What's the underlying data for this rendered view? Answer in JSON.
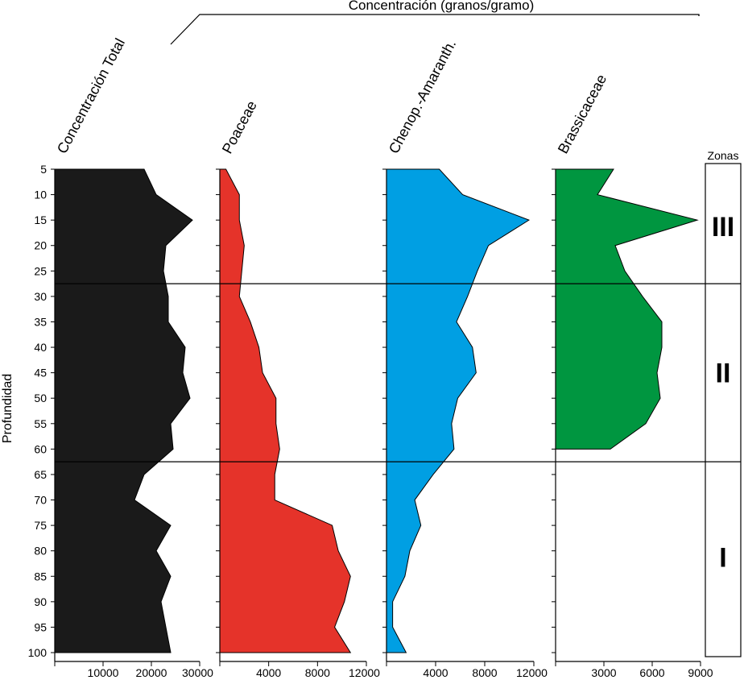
{
  "chart_data": {
    "type": "area",
    "title": "Concentración (granos/gramo)",
    "ylabel": "Profundidad",
    "zones_label": "Zonas",
    "depth": {
      "ticks": [
        5,
        10,
        15,
        20,
        25,
        30,
        35,
        40,
        45,
        50,
        55,
        60,
        65,
        70,
        75,
        80,
        85,
        90,
        95,
        100
      ],
      "ylim": [
        5,
        100
      ]
    },
    "panels": [
      {
        "name": "Concentración Total",
        "color": "#1a1a1a",
        "xlim": [
          0,
          30000
        ],
        "xticks": [
          10000,
          20000,
          30000
        ],
        "points": [
          [
            5,
            18500
          ],
          [
            10,
            21000
          ],
          [
            15,
            28500
          ],
          [
            20,
            23000
          ],
          [
            25,
            22500
          ],
          [
            30,
            23500
          ],
          [
            35,
            23500
          ],
          [
            40,
            27000
          ],
          [
            45,
            26500
          ],
          [
            50,
            28000
          ],
          [
            55,
            24000
          ],
          [
            60,
            24500
          ],
          [
            65,
            18500
          ],
          [
            70,
            16500
          ],
          [
            75,
            24000
          ],
          [
            80,
            21000
          ],
          [
            85,
            24000
          ],
          [
            90,
            22000
          ],
          [
            95,
            23000
          ],
          [
            100,
            24000
          ]
        ]
      },
      {
        "name": "Poaceae",
        "color": "#e5332a",
        "xlim": [
          0,
          12000
        ],
        "xticks": [
          4000,
          8000,
          12000
        ],
        "points": [
          [
            5,
            500
          ],
          [
            10,
            1600
          ],
          [
            15,
            1600
          ],
          [
            20,
            2000
          ],
          [
            25,
            1800
          ],
          [
            30,
            1600
          ],
          [
            35,
            2500
          ],
          [
            40,
            3200
          ],
          [
            45,
            3500
          ],
          [
            50,
            4600
          ],
          [
            55,
            4600
          ],
          [
            60,
            4900
          ],
          [
            65,
            4500
          ],
          [
            70,
            4500
          ],
          [
            75,
            9200
          ],
          [
            80,
            9700
          ],
          [
            85,
            10700
          ],
          [
            90,
            10200
          ],
          [
            95,
            9400
          ],
          [
            100,
            10700
          ]
        ]
      },
      {
        "name": "Chenop.-Amaranth.",
        "color": "#009fe3",
        "xlim": [
          0,
          12000
        ],
        "xticks": [
          4000,
          8000,
          12000
        ],
        "points": [
          [
            5,
            4300
          ],
          [
            10,
            6200
          ],
          [
            15,
            11600
          ],
          [
            20,
            8300
          ],
          [
            25,
            7400
          ],
          [
            30,
            6600
          ],
          [
            35,
            5700
          ],
          [
            40,
            7000
          ],
          [
            45,
            7300
          ],
          [
            50,
            5800
          ],
          [
            55,
            5300
          ],
          [
            60,
            5500
          ],
          [
            65,
            3800
          ],
          [
            70,
            2300
          ],
          [
            75,
            2800
          ],
          [
            80,
            1900
          ],
          [
            85,
            1500
          ],
          [
            90,
            500
          ],
          [
            95,
            500
          ],
          [
            100,
            1600
          ]
        ]
      },
      {
        "name": "Brassicaceae",
        "color": "#009640",
        "xlim": [
          0,
          9000
        ],
        "xticks": [
          3000,
          6000,
          9000
        ],
        "points": [
          [
            5,
            3600
          ],
          [
            10,
            2600
          ],
          [
            15,
            8800
          ],
          [
            20,
            3700
          ],
          [
            25,
            4300
          ],
          [
            30,
            5400
          ],
          [
            35,
            6600
          ],
          [
            40,
            6600
          ],
          [
            45,
            6300
          ],
          [
            50,
            6500
          ],
          [
            55,
            5600
          ],
          [
            60,
            3400
          ]
        ]
      }
    ],
    "zones": [
      {
        "label": "III",
        "from": 5,
        "to": 27.5
      },
      {
        "label": "II",
        "from": 27.5,
        "to": 62.5
      },
      {
        "label": "I",
        "from": 62.5,
        "to": 100
      }
    ],
    "zone_boundaries": [
      27.5,
      62.5
    ]
  }
}
